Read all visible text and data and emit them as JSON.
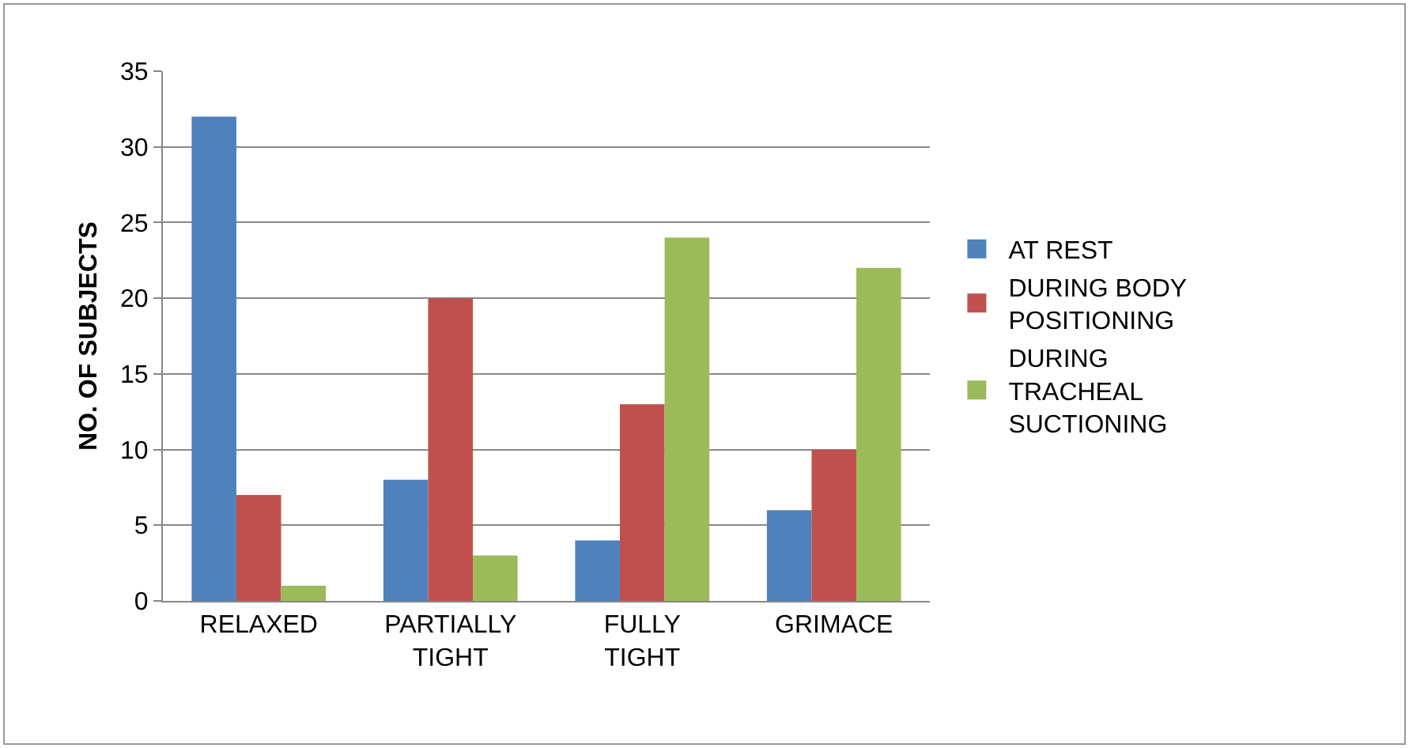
{
  "chart_data": {
    "type": "bar",
    "ylabel": "NO. OF SUBJECTS",
    "categories": [
      "RELAXED",
      "PARTIALLY TIGHT",
      "FULLY TIGHT",
      "GRIMACE"
    ],
    "series": [
      {
        "name": "AT REST",
        "color": "#4f81bd",
        "values": [
          32,
          8,
          4,
          6
        ]
      },
      {
        "name": "DURING BODY POSITIONING",
        "color": "#c0504d",
        "values": [
          7,
          20,
          13,
          10
        ]
      },
      {
        "name": "DURING TRACHEAL SUCTIONING",
        "color": "#9bbb59",
        "values": [
          1,
          3,
          24,
          22
        ]
      }
    ],
    "ylim": [
      0,
      35
    ],
    "yticks": [
      0,
      5,
      10,
      15,
      20,
      25,
      30,
      35
    ],
    "grid": "y",
    "legend": "right"
  }
}
